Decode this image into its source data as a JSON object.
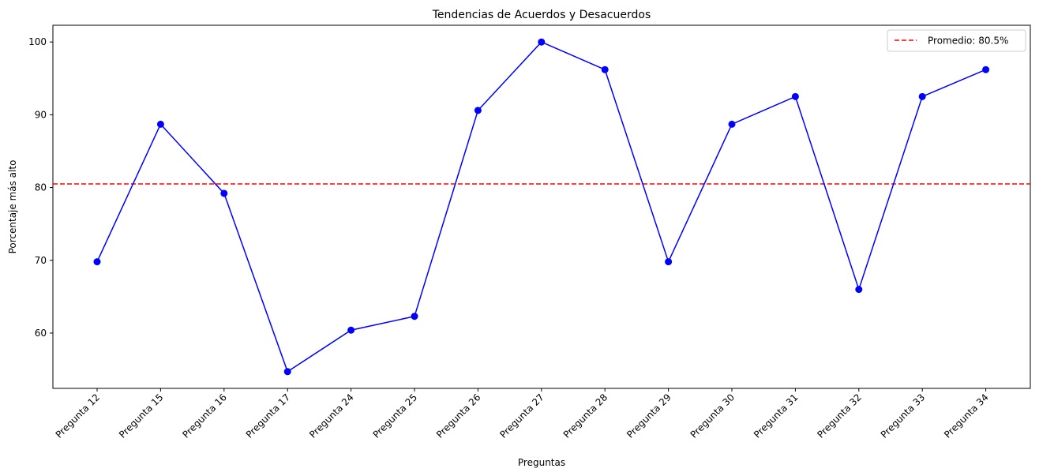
{
  "chart_data": {
    "type": "line",
    "title": "Tendencias de Acuerdos y Desacuerdos",
    "xlabel": "Preguntas",
    "ylabel": "Porcentaje más alto",
    "categories": [
      "Pregunta 12",
      "Pregunta 15",
      "Pregunta 16",
      "Pregunta 17",
      "Pregunta 24",
      "Pregunta 25",
      "Pregunta 26",
      "Pregunta 27",
      "Pregunta 28",
      "Pregunta 29",
      "Pregunta 30",
      "Pregunta 31",
      "Pregunta 32",
      "Pregunta 33",
      "Pregunta 34"
    ],
    "series": [
      {
        "values": [
          69.8,
          88.7,
          79.2,
          54.7,
          60.4,
          62.3,
          90.6,
          100.0,
          96.2,
          69.8,
          88.7,
          92.5,
          66.0,
          92.5,
          96.2
        ],
        "color": "#0000ff",
        "marker": "circle"
      }
    ],
    "reference_line": {
      "value": 80.5,
      "label": "Promedio: 80.5%",
      "color": "#ff0000",
      "style": "dashed"
    },
    "ylim": [
      52.4,
      102.3
    ],
    "yticks": [
      60,
      70,
      80,
      90,
      100
    ],
    "grid": false,
    "legend_position": "top-right"
  }
}
